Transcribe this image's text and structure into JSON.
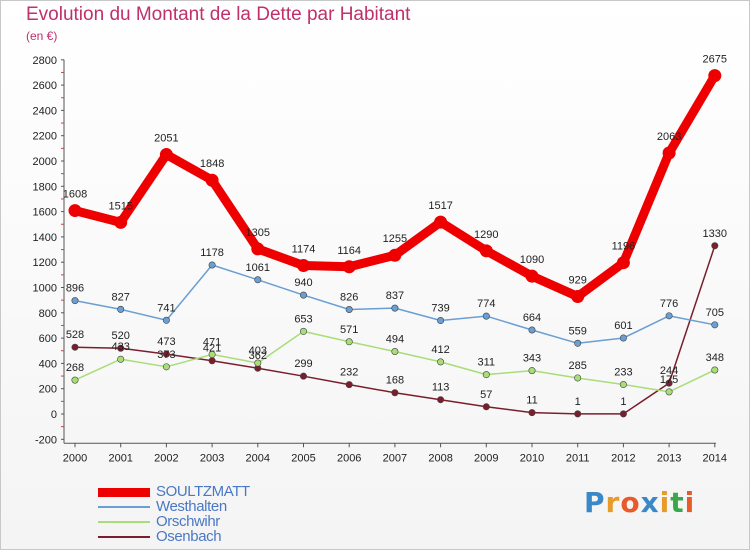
{
  "chart_data": {
    "type": "line",
    "title": "Evolution du Montant de la Dette par Habitant",
    "subtitle": "(en €)",
    "categories": [
      "2000",
      "2001",
      "2002",
      "2003",
      "2004",
      "2005",
      "2006",
      "2007",
      "2008",
      "2009",
      "2010",
      "2011",
      "2012",
      "2013",
      "2014"
    ],
    "ylim": [
      -200,
      2800
    ],
    "yticks": [
      -200,
      0,
      200,
      400,
      600,
      800,
      1000,
      1200,
      1400,
      1600,
      1800,
      2000,
      2200,
      2400,
      2600,
      2800
    ],
    "grid": false,
    "legend_position": "bottom-left",
    "series": [
      {
        "name": "SOULTZMATT",
        "color": "#ee0000",
        "values": [
          1608,
          1515,
          2051,
          1848,
          1305,
          1174,
          1164,
          1255,
          1517,
          1290,
          1090,
          929,
          1196,
          2063,
          2675
        ]
      },
      {
        "name": "Westhalten",
        "color": "#6b9ed2",
        "values": [
          896,
          827,
          741,
          1178,
          1061,
          940,
          826,
          837,
          739,
          774,
          664,
          559,
          601,
          776,
          705
        ]
      },
      {
        "name": "Orschwihr",
        "color": "#a8dd78",
        "values": [
          268,
          433,
          373,
          471,
          403,
          653,
          571,
          494,
          412,
          311,
          343,
          285,
          233,
          175,
          348
        ]
      },
      {
        "name": "Osenbach",
        "color": "#7a1e2c",
        "values": [
          528,
          520,
          473,
          421,
          362,
          299,
          232,
          168,
          113,
          57,
          11,
          1,
          1,
          244,
          1330
        ]
      }
    ]
  },
  "logo": {
    "letters": [
      "P",
      "r",
      "o",
      "x",
      "i",
      "t",
      "i"
    ],
    "colors": [
      "#3a88c8",
      "#e89a2a",
      "#e85a2a",
      "#3a88c8",
      "#e89a2a",
      "#3aa84a",
      "#e85a2a"
    ]
  }
}
